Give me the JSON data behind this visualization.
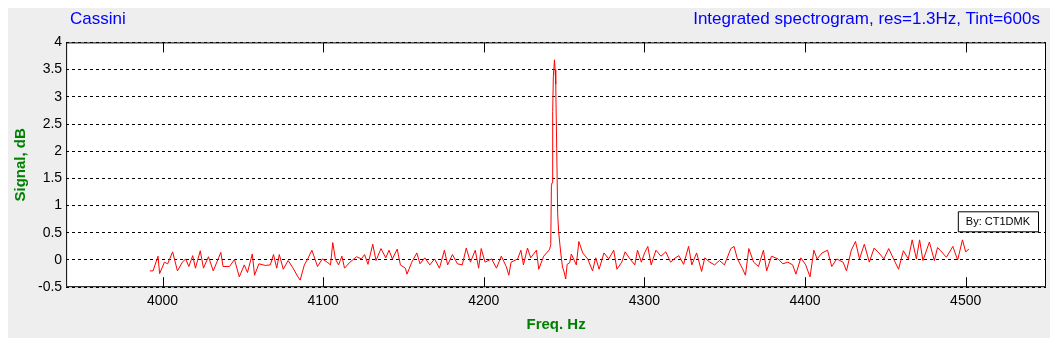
{
  "chart_data": {
    "type": "line",
    "title": "Cassini",
    "subtitle": "Integrated spectrogram, res=1.3Hz, Tint=600s",
    "xlabel": "Freq. Hz",
    "ylabel": "Signal, dB",
    "annotations": [
      "By: CT1DMK"
    ],
    "xlim": [
      3940,
      4550
    ],
    "xticks": [
      4000,
      4100,
      4200,
      4300,
      4400,
      4500
    ],
    "ylim": [
      -0.5,
      4
    ],
    "yticks": [
      -0.5,
      0,
      0.5,
      1,
      1.5,
      2,
      2.5,
      3,
      3.5,
      4
    ],
    "grid": "y",
    "line_style": "solid",
    "series": [
      {
        "color": "#ff0000",
        "x": [
          3992.1,
          3994.1,
          3997.2,
          3998.2,
          4001.2,
          4003.2,
          4006.3,
          4009.3,
          4012.4,
          4014.4,
          4016.4,
          4018.8,
          4020.5,
          4023.5,
          4025.5,
          4028.6,
          4031.6,
          4036.3,
          4037.7,
          4041.7,
          4044.8,
          4047.8,
          4050.9,
          4052.9,
          4055.9,
          4057.3,
          4060.0,
          4064.0,
          4067.1,
          4069.1,
          4071.1,
          4072.7,
          4075.2,
          4078.2,
          4081.3,
          4084.3,
          4085.7,
          4088.3,
          4090.4,
          4093.0,
          4096.5,
          4099.5,
          4102.5,
          4104.6,
          4106.0,
          4107.6,
          4109.6,
          4111.7,
          4113.3,
          4116.7,
          4120.8,
          4123.8,
          4125.8,
          4127.9,
          4130.9,
          4132.9,
          4136.0,
          4139.0,
          4141.0,
          4143.1,
          4146.1,
          4148.1,
          4151.2,
          4152.2,
          4155.2,
          4158.3,
          4160.3,
          4163.3,
          4166.4,
          4169.4,
          4172.4,
          4175.5,
          4177.5,
          4180.5,
          4183.6,
          4186.6,
          4189.1,
          4191.7,
          4194.7,
          4196.8,
          4198.4,
          4200.8,
          4204.9,
          4207.9,
          4210.9,
          4214.0,
          4215.6,
          4217.0,
          4221.1,
          4223.1,
          4224.7,
          4227.2,
          4229.2,
          4232.8,
          4234.2,
          4237.3,
          4240.9,
          4241.7,
          4242.1,
          4242.5,
          4242.9,
          4243.3,
          4244.0,
          4244.4,
          4244.8,
          4245.4,
          4246.0,
          4246.6,
          4247.4,
          4248.0,
          4249.0,
          4250.0,
          4251.0,
          4251.9,
          4253.5,
          4254.5,
          4257.6,
          4259.2,
          4261.6,
          4264.7,
          4267.7,
          4269.7,
          4271.8,
          4274.8,
          4277.8,
          4280.9,
          4282.9,
          4285.9,
          4288.0,
          4291.0,
          4294.0,
          4295.7,
          4298.1,
          4300.1,
          4302.1,
          4304.2,
          4307.2,
          4310.3,
          4313.3,
          4316.3,
          4318.4,
          4321.4,
          4324.4,
          4327.5,
          4329.5,
          4332.5,
          4335.6,
          4337.6,
          4340.7,
          4343.7,
          4346.7,
          4349.8,
          4353.8,
          4355.8,
          4357.9,
          4360.9,
          4362.9,
          4365.0,
          4368.0,
          4371.0,
          4374.1,
          4376.1,
          4379.1,
          4383.2,
          4386.2,
          4389.3,
          4392.3,
          4394.3,
          4397.4,
          4400.4,
          4403.1,
          4405.5,
          4407.5,
          4410.6,
          4414.0,
          4416.6,
          4419.7,
          4423.7,
          4425.8,
          4428.8,
          4431.4,
          4433.9,
          4436.9,
          4440.0,
          4443.0,
          4446.0,
          4449.1,
          4452.1,
          4455.1,
          4458.2,
          4461.2,
          4464.3,
          4466.7,
          4469.3,
          4471.3,
          4473.4,
          4477.4,
          4480.5,
          4482.5,
          4484.1,
          4488.0,
          4492.0,
          4495.0,
          4498.0,
          4500.0,
          4502.0
        ],
        "values": [
          -0.2,
          -0.2,
          0.07,
          -0.25,
          -0.04,
          -0.07,
          0.15,
          -0.2,
          -0.04,
          0.02,
          -0.12,
          0.08,
          -0.15,
          0.17,
          -0.15,
          0.06,
          -0.2,
          0.14,
          -0.12,
          -0.12,
          0.01,
          -0.31,
          -0.09,
          -0.23,
          0.11,
          -0.28,
          -0.07,
          -0.1,
          -0.09,
          0.1,
          -0.15,
          0.1,
          -0.17,
          -0.01,
          -0.15,
          -0.31,
          -0.37,
          -0.09,
          0.02,
          0.18,
          -0.12,
          0.02,
          -0.04,
          -0.09,
          0.32,
          0.02,
          -0.09,
          0.07,
          -0.15,
          -0.04,
          0.06,
          0.02,
          0.1,
          -0.08,
          0.29,
          -0.01,
          0.21,
          0.04,
          0.18,
          0.02,
          0.2,
          -0.09,
          -0.15,
          -0.26,
          -0.04,
          0.13,
          -0.07,
          0.04,
          -0.09,
          0.02,
          -0.15,
          0.18,
          -0.09,
          0.1,
          -0.07,
          -0.09,
          0.22,
          -0.04,
          0.18,
          -0.15,
          0.21,
          -0.04,
          0.02,
          -0.15,
          0.07,
          -0.12,
          -0.28,
          -0.04,
          0.02,
          0.18,
          -0.09,
          0.22,
          0.04,
          0.18,
          -0.17,
          0.07,
          0.19,
          0.28,
          1.37,
          1.42,
          2.73,
          3.37,
          3.68,
          3.5,
          3.23,
          2.05,
          0.85,
          0.52,
          0.28,
          0.11,
          -0.13,
          -0.22,
          -0.35,
          -0.08,
          -0.05,
          0.11,
          -0.09,
          0.34,
          0.13,
          0.02,
          -0.2,
          0.04,
          -0.17,
          0.13,
          0.02,
          0.18,
          -0.17,
          -0.04,
          0.15,
          0.02,
          -0.09,
          0.18,
          -0.04,
          0.13,
          0.25,
          -0.09,
          0.18,
          0.07,
          0.15,
          -0.04,
          0.02,
          0.08,
          -0.08,
          0.25,
          -0.09,
          0.13,
          -0.21,
          0.04,
          -0.04,
          -0.09,
          -0.01,
          -0.09,
          0.21,
          0.25,
          0.02,
          -0.15,
          -0.28,
          0.21,
          -0.04,
          -0.12,
          0.18,
          -0.2,
          0.07,
          0.02,
          -0.07,
          -0.04,
          -0.09,
          -0.26,
          0.04,
          -0.09,
          -0.31,
          0.18,
          0.02,
          0.13,
          0.18,
          -0.12,
          0.02,
          -0.04,
          -0.2,
          0.18,
          0.34,
          0.02,
          0.29,
          -0.04,
          0.22,
          0.13,
          0.02,
          0.21,
          0.02,
          -0.17,
          0.17,
          0.02,
          0.37,
          0.02,
          0.37,
          -0.01,
          0.33,
          -0.01,
          0.23,
          0.18,
          0.05,
          0.25,
          0.0,
          0.37,
          0.15,
          0.2
        ]
      }
    ]
  }
}
